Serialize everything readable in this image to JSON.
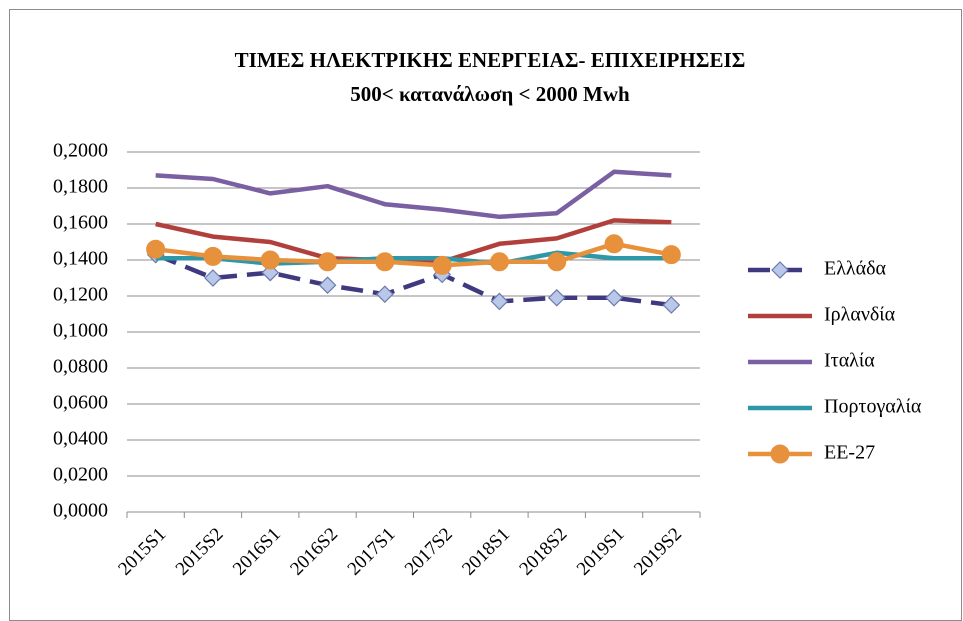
{
  "chart_data": {
    "type": "line",
    "title": "ΤΙΜΕΣ ΗΛΕΚΤΡΙΚΗΣ ΕΝΕΡΓΕΙΑΣ- ΕΠΙΧΕΙΡΗΣΕΙΣ",
    "subtitle": "500< κατανάλωση < 2000 Mwh",
    "categories": [
      "2015S1",
      "2015S2",
      "2016S1",
      "2016S2",
      "2017S1",
      "2017S2",
      "2018S1",
      "2018S2",
      "2019S1",
      "2019S2"
    ],
    "series": [
      {
        "name": "Ελλάδα",
        "color": "#3f3a80",
        "marker": "diamond",
        "dashed": true,
        "values": [
          0.143,
          0.13,
          0.133,
          0.126,
          0.121,
          0.132,
          0.117,
          0.119,
          0.119,
          0.115
        ]
      },
      {
        "name": "Ιρλανδία",
        "color": "#b1403c",
        "values": [
          0.16,
          0.153,
          0.15,
          0.141,
          0.14,
          0.139,
          0.149,
          0.152,
          0.162,
          0.161
        ]
      },
      {
        "name": "Ιταλία",
        "color": "#7b5fa3",
        "values": [
          0.187,
          0.185,
          0.177,
          0.181,
          0.171,
          0.168,
          0.164,
          0.166,
          0.189,
          0.187
        ]
      },
      {
        "name": "Πορτογαλία",
        "color": "#2e97a8",
        "values": [
          0.141,
          0.141,
          0.138,
          0.139,
          0.141,
          0.141,
          0.138,
          0.144,
          0.141,
          0.141
        ]
      },
      {
        "name": "ΕΕ-27",
        "color": "#e8913d",
        "marker": "circle",
        "values": [
          0.146,
          0.142,
          0.14,
          0.139,
          0.139,
          0.137,
          0.139,
          0.139,
          0.149,
          0.143
        ]
      }
    ],
    "ylim": [
      0,
      0.2
    ],
    "yticks": [
      {
        "value": 0,
        "label": "0,0000"
      },
      {
        "value": 0.02,
        "label": "0,0200"
      },
      {
        "value": 0.04,
        "label": "0,0400"
      },
      {
        "value": 0.06,
        "label": "0,0600"
      },
      {
        "value": 0.08,
        "label": "0,0800"
      },
      {
        "value": 0.1,
        "label": "0,1000"
      },
      {
        "value": 0.12,
        "label": "0,1200"
      },
      {
        "value": 0.14,
        "label": "0,1400"
      },
      {
        "value": 0.16,
        "label": "0,1600"
      },
      {
        "value": 0.18,
        "label": "0,1800"
      },
      {
        "value": 0.2,
        "label": "0,2000"
      }
    ],
    "grid": true,
    "legend": "right"
  }
}
